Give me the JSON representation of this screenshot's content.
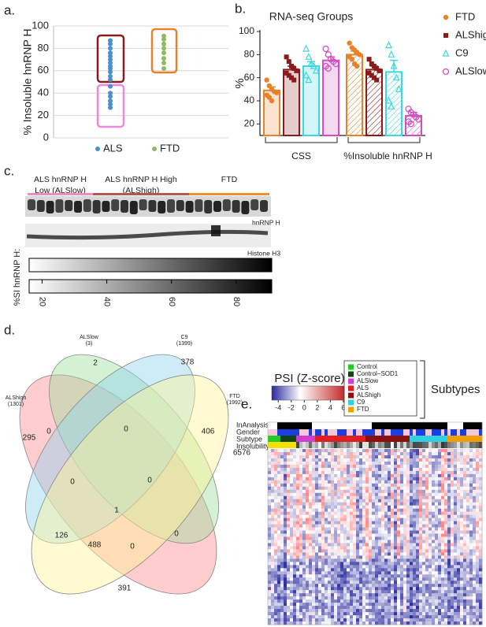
{
  "panels": {
    "a": "a.",
    "b": "b.",
    "c": "c.",
    "d": "d.",
    "e": "e."
  },
  "chart_data": [
    {
      "type": "strip",
      "ylabel": "% Insoluble hnRNP H",
      "categories": [
        "ALS",
        "FTD"
      ],
      "series": [
        {
          "name": "ALS",
          "color": "#4a8fd0",
          "values": [
            87,
            84,
            80,
            76,
            73,
            70,
            67,
            64,
            62,
            59,
            55,
            52,
            46,
            40,
            37,
            33,
            30,
            27
          ]
        },
        {
          "name": "FTD",
          "color": "#92b866",
          "values": [
            91,
            88,
            84,
            80,
            76,
            71,
            67,
            62
          ]
        }
      ],
      "ylim": [
        0,
        100
      ],
      "yticks": [
        0,
        20,
        40,
        60,
        80,
        100
      ],
      "grid": true
    },
    {
      "type": "bar",
      "title": "RNA-seq Groups",
      "ylabel": "%",
      "categories": [
        "CSS",
        "%Insoluble hnRNP H"
      ],
      "hatch": [
        false,
        true
      ],
      "series": [
        {
          "name": "FTD",
          "color": "#e8822a",
          "marker": "circle",
          "values": [
            49,
            80
          ],
          "errors": [
            3,
            3
          ],
          "points": [
            [
              58,
              53,
              50,
              48,
              47,
              45,
              43,
              40
            ],
            [
              90,
              86,
              84,
              82,
              80,
              78,
              76,
              72,
              70
            ]
          ]
        },
        {
          "name": "ALShigh",
          "color": "#8b1a1a",
          "marker": "square",
          "values": [
            67,
            67
          ],
          "errors": [
            3,
            3
          ],
          "points": [
            [
              78,
              74,
              70,
              68,
              66,
              64,
              62,
              60,
              58
            ],
            [
              76,
              72,
              70,
              68,
              66,
              64,
              62,
              60,
              58
            ]
          ]
        },
        {
          "name": "C9",
          "color": "#3fd6df",
          "marker": "triangle",
          "values": [
            70,
            65
          ],
          "errors": [
            4,
            10
          ],
          "points": [
            [
              85,
              78,
              72,
              70,
              66,
              62,
              58
            ],
            [
              88,
              80,
              70,
              60,
              50,
              40,
              35
            ]
          ]
        },
        {
          "name": "ALSlow",
          "color": "#d050c0",
          "marker": "open-circle",
          "values": [
            75,
            27
          ],
          "errors": [
            3,
            3
          ],
          "points": [
            [
              85,
              80,
              76,
              74,
              72,
              70,
              68
            ],
            [
              33,
              30,
              28,
              26,
              24,
              22,
              20
            ]
          ]
        }
      ],
      "ylim": [
        10,
        100
      ],
      "yticks": [
        20,
        40,
        60,
        80,
        100
      ]
    }
  ],
  "blot": {
    "groups": [
      {
        "lines": [
          "ALS hnRNP H",
          "Low (ALSlow)"
        ],
        "color": "#e890c0"
      },
      {
        "lines": [
          "ALS hnRNP H High",
          "(ALShigh)"
        ],
        "color": "#b05a50"
      },
      {
        "lines": [
          "FTD"
        ],
        "color": "#e8922a"
      }
    ],
    "bands": [
      "hnRNP H",
      "Histone H3"
    ],
    "scale_label": "%SI hnRNP H:",
    "scale": {
      "lim": [
        16,
        91
      ],
      "ticks": [
        20,
        40,
        60,
        80
      ]
    }
  },
  "venn": {
    "sets": [
      {
        "name": "ALShigh",
        "count": "(1301)",
        "color": "#e03030"
      },
      {
        "name": "ALSlow",
        "count": "(3)",
        "color": "#30b030"
      },
      {
        "name": "C9",
        "count": "(1399)",
        "color": "#30b0e0"
      },
      {
        "name": "FTD",
        "count": "(1992)",
        "color": "#c8b400"
      }
    ],
    "regions": [
      2,
      378,
      0,
      0,
      406,
      295,
      0,
      0,
      6576,
      1,
      126,
      488,
      0,
      0,
      391
    ]
  },
  "heatmap": {
    "title": "PSI (Z-score)",
    "scale": {
      "lim": [
        -5,
        6.5
      ],
      "ticks": [
        -4,
        -2,
        0,
        2,
        4,
        6
      ]
    },
    "legend": [
      {
        "name": "Control",
        "color": "#22cc22"
      },
      {
        "name": "Control−SOD1",
        "color": "#114411"
      },
      {
        "name": "ALSlow",
        "color": "#d040d0"
      },
      {
        "name": "ALS",
        "color": "#e02020"
      },
      {
        "name": "ALShigh",
        "color": "#8c1010"
      },
      {
        "name": "C9",
        "color": "#30d0e0"
      },
      {
        "name": "FTD",
        "color": "#f0a000"
      }
    ],
    "bracket_label": "Subtypes",
    "rows": [
      "InAnalysis",
      "Gender",
      "Subtype",
      "Insolubility"
    ]
  }
}
